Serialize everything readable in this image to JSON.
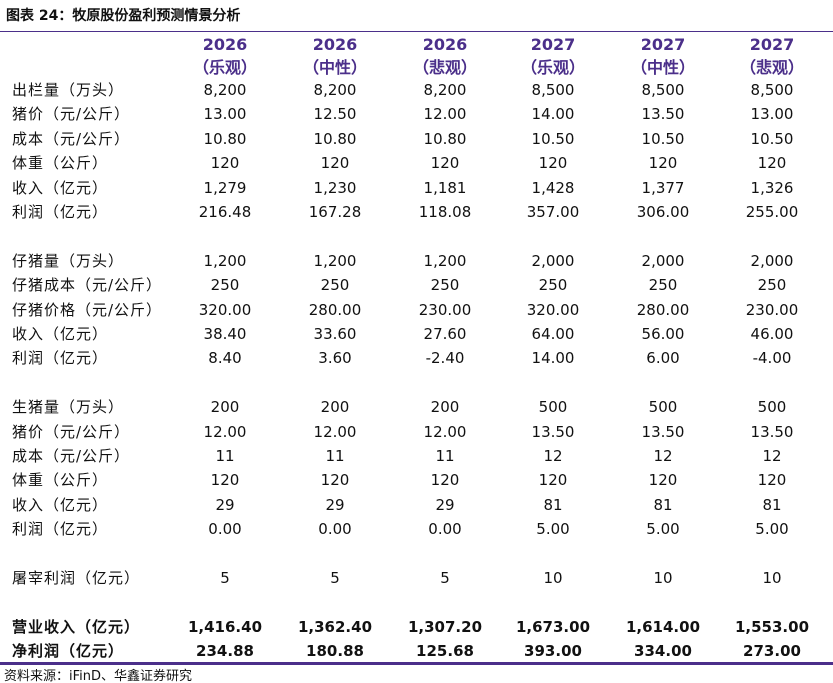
{
  "header": {
    "title": "图表 24：牧原股份盈利预测情景分析"
  },
  "table": {
    "columns": [
      {
        "year": "2026",
        "scenario": "（乐观）"
      },
      {
        "year": "2026",
        "scenario": "（中性）"
      },
      {
        "year": "2026",
        "scenario": "（悲观）"
      },
      {
        "year": "2027",
        "scenario": "（乐观）"
      },
      {
        "year": "2027",
        "scenario": "（中性）"
      },
      {
        "year": "2027",
        "scenario": "（悲观）"
      }
    ],
    "sections": [
      [
        [
          "出栏量（万头）",
          "8,200",
          "8,200",
          "8,200",
          "8,500",
          "8,500",
          "8,500"
        ],
        [
          "猪价（元/公斤）",
          "13.00",
          "12.50",
          "12.00",
          "14.00",
          "13.50",
          "13.00"
        ],
        [
          "成本（元/公斤）",
          "10.80",
          "10.80",
          "10.80",
          "10.50",
          "10.50",
          "10.50"
        ],
        [
          "体重（公斤）",
          "120",
          "120",
          "120",
          "120",
          "120",
          "120"
        ],
        [
          "收入（亿元）",
          "1,279",
          "1,230",
          "1,181",
          "1,428",
          "1,377",
          "1,326"
        ],
        [
          "利润（亿元）",
          "216.48",
          "167.28",
          "118.08",
          "357.00",
          "306.00",
          "255.00"
        ]
      ],
      [
        [
          "仔猪量（万头）",
          "1,200",
          "1,200",
          "1,200",
          "2,000",
          "2,000",
          "2,000"
        ],
        [
          "仔猪成本（元/公斤）",
          "250",
          "250",
          "250",
          "250",
          "250",
          "250"
        ],
        [
          "仔猪价格（元/公斤）",
          "320.00",
          "280.00",
          "230.00",
          "320.00",
          "280.00",
          "230.00"
        ],
        [
          "收入（亿元）",
          "38.40",
          "33.60",
          "27.60",
          "64.00",
          "56.00",
          "46.00"
        ],
        [
          "利润（亿元）",
          "8.40",
          "3.60",
          "-2.40",
          "14.00",
          "6.00",
          "-4.00"
        ]
      ],
      [
        [
          "生猪量（万头）",
          "200",
          "200",
          "200",
          "500",
          "500",
          "500"
        ],
        [
          "猪价（元/公斤）",
          "12.00",
          "12.00",
          "12.00",
          "13.50",
          "13.50",
          "13.50"
        ],
        [
          "成本（元/公斤）",
          "11",
          "11",
          "11",
          "12",
          "12",
          "12"
        ],
        [
          "体重（公斤）",
          "120",
          "120",
          "120",
          "120",
          "120",
          "120"
        ],
        [
          "收入（亿元）",
          "29",
          "29",
          "29",
          "81",
          "81",
          "81"
        ],
        [
          "利润（亿元）",
          "0.00",
          "0.00",
          "0.00",
          "5.00",
          "5.00",
          "5.00"
        ]
      ],
      [
        [
          "屠宰利润（亿元）",
          "5",
          "5",
          "5",
          "10",
          "10",
          "10"
        ]
      ]
    ],
    "totals": [
      [
        "营业收入（亿元）",
        "1,416.40",
        "1,362.40",
        "1,307.20",
        "1,673.00",
        "1,614.00",
        "1,553.00"
      ],
      [
        "净利润（亿元）",
        "234.88",
        "180.88",
        "125.68",
        "393.00",
        "334.00",
        "273.00"
      ]
    ]
  },
  "footer": {
    "source": "资料来源：iFinD、华鑫证券研究"
  }
}
